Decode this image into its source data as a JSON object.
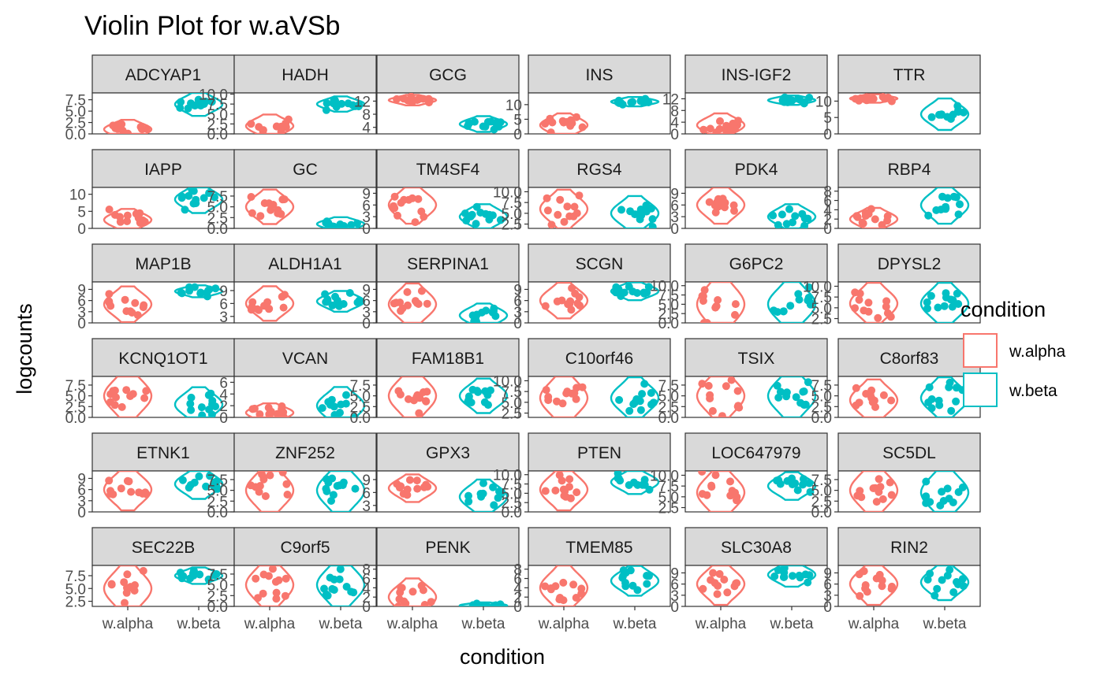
{
  "chart_data": {
    "type": "violin",
    "title": "Violin Plot for w.aVSb",
    "xlabel": "condition",
    "ylabel": "logcounts",
    "categories": [
      "w.alpha",
      "w.beta"
    ],
    "legend": {
      "title": "condition",
      "position": "right",
      "entries": [
        {
          "label": "w.alpha",
          "color": "#F8766D"
        },
        {
          "label": "w.beta",
          "color": "#00BFC4"
        }
      ]
    },
    "facets": [
      {
        "gene": "ADCYAP1",
        "yticks": [
          "0.0",
          "2.5",
          "5.0",
          "7.5"
        ],
        "ylim": [
          0,
          9
        ],
        "alpha": {
          "center": 1.0,
          "spread": 1.3
        },
        "beta": {
          "center": 6.5,
          "spread": 1.6
        }
      },
      {
        "gene": "HADH",
        "yticks": [
          "0.0",
          "2.5",
          "5.0",
          "7.5",
          "10.0"
        ],
        "ylim": [
          0,
          10.3
        ],
        "alpha": {
          "center": 2.0,
          "spread": 1.8
        },
        "beta": {
          "center": 7.5,
          "spread": 1.2
        }
      },
      {
        "gene": "GCG",
        "yticks": [
          "4",
          "8",
          "12"
        ],
        "ylim": [
          2,
          14.5
        ],
        "alpha": {
          "center": 12.3,
          "spread": 1.0
        },
        "beta": {
          "center": 5.0,
          "spread": 1.5
        }
      },
      {
        "gene": "INS",
        "yticks": [
          "0",
          "5",
          "10"
        ],
        "ylim": [
          0,
          14
        ],
        "alpha": {
          "center": 3.0,
          "spread": 2.5
        },
        "beta": {
          "center": 11.0,
          "spread": 1.0
        }
      },
      {
        "gene": "INS-IGF2",
        "yticks": [
          "0",
          "4",
          "8",
          "12"
        ],
        "ylim": [
          0,
          14
        ],
        "alpha": {
          "center": 3.0,
          "spread": 2.5
        },
        "beta": {
          "center": 11.5,
          "spread": 1.0
        }
      },
      {
        "gene": "TTR",
        "yticks": [
          "0",
          "5",
          "10"
        ],
        "ylim": [
          0,
          12.5
        ],
        "alpha": {
          "center": 10.8,
          "spread": 0.8
        },
        "beta": {
          "center": 6.0,
          "spread": 3.0
        }
      },
      {
        "gene": "IAPP",
        "yticks": [
          "0",
          "5",
          "10"
        ],
        "ylim": [
          0,
          12
        ],
        "alpha": {
          "center": 2.5,
          "spread": 2.0
        },
        "beta": {
          "center": 8.5,
          "spread": 2.5
        }
      },
      {
        "gene": "GC",
        "yticks": [
          "0.0",
          "2.5",
          "5.0",
          "7.5"
        ],
        "ylim": [
          0,
          9.5
        ],
        "alpha": {
          "center": 5.0,
          "spread": 2.5
        },
        "beta": {
          "center": 1.0,
          "spread": 1.0
        }
      },
      {
        "gene": "TM4SF4",
        "yticks": [
          "0",
          "3",
          "6",
          "9"
        ],
        "ylim": [
          0,
          10.5
        ],
        "alpha": {
          "center": 6.0,
          "spread": 3.0
        },
        "beta": {
          "center": 3.0,
          "spread": 2.0
        }
      },
      {
        "gene": "RGS4",
        "yticks": [
          "2.5",
          "5.0",
          "7.5",
          "10.0"
        ],
        "ylim": [
          1.5,
          11.0
        ],
        "alpha": {
          "center": 6.0,
          "spread": 2.8
        },
        "beta": {
          "center": 5.0,
          "spread": 2.5
        }
      },
      {
        "gene": "PDK4",
        "yticks": [
          "0",
          "3",
          "6",
          "9"
        ],
        "ylim": [
          0,
          10.5
        ],
        "alpha": {
          "center": 6.0,
          "spread": 3.0
        },
        "beta": {
          "center": 3.0,
          "spread": 2.0
        }
      },
      {
        "gene": "RBP4",
        "yticks": [
          "0",
          "2",
          "4",
          "6",
          "8"
        ],
        "ylim": [
          0,
          8.8
        ],
        "alpha": {
          "center": 2.0,
          "spread": 1.5
        },
        "beta": {
          "center": 5.0,
          "spread": 2.5
        }
      },
      {
        "gene": "MAP1B",
        "yticks": [
          "0",
          "3",
          "6",
          "9"
        ],
        "ylim": [
          0,
          11
        ],
        "alpha": {
          "center": 5.0,
          "spread": 3.0
        },
        "beta": {
          "center": 8.5,
          "spread": 1.0
        }
      },
      {
        "gene": "ALDH1A1",
        "yticks": [
          "3",
          "6",
          "9"
        ],
        "ylim": [
          1.5,
          11
        ],
        "alpha": {
          "center": 6.0,
          "spread": 2.5
        },
        "beta": {
          "center": 6.5,
          "spread": 1.5
        }
      },
      {
        "gene": "SERPINA1",
        "yticks": [
          "0",
          "3",
          "6",
          "9"
        ],
        "ylim": [
          0,
          11
        ],
        "alpha": {
          "center": 5.0,
          "spread": 3.5
        },
        "beta": {
          "center": 2.0,
          "spread": 2.0
        }
      },
      {
        "gene": "SCGN",
        "yticks": [
          "0",
          "3",
          "6",
          "9"
        ],
        "ylim": [
          0,
          11
        ],
        "alpha": {
          "center": 6.0,
          "spread": 3.0
        },
        "beta": {
          "center": 8.5,
          "spread": 1.5
        }
      },
      {
        "gene": "G6PC2",
        "yticks": [
          "0.0",
          "2.5",
          "5.0",
          "7.5",
          "10.0"
        ],
        "ylim": [
          0,
          11
        ],
        "alpha": {
          "center": 5.0,
          "spread": 4.5
        },
        "beta": {
          "center": 5.0,
          "spread": 4.0
        }
      },
      {
        "gene": "DPYSL2",
        "yticks": [
          "2.5",
          "5.0",
          "7.5",
          "10.0"
        ],
        "ylim": [
          1.5,
          11
        ],
        "alpha": {
          "center": 6.0,
          "spread": 3.0
        },
        "beta": {
          "center": 6.0,
          "spread": 3.0
        }
      },
      {
        "gene": "KCNQ1OT1",
        "yticks": [
          "0.0",
          "2.5",
          "5.0",
          "7.5"
        ],
        "ylim": [
          0,
          9.5
        ],
        "alpha": {
          "center": 5.0,
          "spread": 3.5
        },
        "beta": {
          "center": 3.0,
          "spread": 2.5
        }
      },
      {
        "gene": "VCAN",
        "yticks": [
          "0",
          "2",
          "4",
          "6"
        ],
        "ylim": [
          0,
          7
        ],
        "alpha": {
          "center": 0.8,
          "spread": 1.0
        },
        "beta": {
          "center": 2.0,
          "spread": 2.0
        }
      },
      {
        "gene": "FAM18B1",
        "yticks": [
          "0.0",
          "2.5",
          "5.0",
          "7.5"
        ],
        "ylim": [
          0,
          9.5
        ],
        "alpha": {
          "center": 5.0,
          "spread": 3.5
        },
        "beta": {
          "center": 5.0,
          "spread": 2.5
        }
      },
      {
        "gene": "C10orf46",
        "yticks": [
          "2.5",
          "5.0",
          "7.5",
          "10.0"
        ],
        "ylim": [
          1.5,
          11
        ],
        "alpha": {
          "center": 6.0,
          "spread": 3.5
        },
        "beta": {
          "center": 6.0,
          "spread": 3.0
        }
      },
      {
        "gene": "TSIX",
        "yticks": [
          "0.0",
          "2.5",
          "5.0",
          "7.5"
        ],
        "ylim": [
          0,
          9.5
        ],
        "alpha": {
          "center": 5.0,
          "spread": 3.5
        },
        "beta": {
          "center": 5.0,
          "spread": 3.5
        }
      },
      {
        "gene": "C8orf83",
        "yticks": [
          "0.0",
          "2.5",
          "5.0",
          "7.5"
        ],
        "ylim": [
          0,
          9.5
        ],
        "alpha": {
          "center": 4.0,
          "spread": 3.0
        },
        "beta": {
          "center": 4.5,
          "spread": 3.0
        }
      },
      {
        "gene": "ETNK1",
        "yticks": [
          "0",
          "3",
          "6",
          "9"
        ],
        "ylim": [
          0,
          11
        ],
        "alpha": {
          "center": 6.0,
          "spread": 3.5
        },
        "beta": {
          "center": 7.5,
          "spread": 2.5
        }
      },
      {
        "gene": "ZNF252",
        "yticks": [
          "0.0",
          "2.5",
          "5.0",
          "7.5"
        ],
        "ylim": [
          0,
          9.5
        ],
        "alpha": {
          "center": 5.0,
          "spread": 3.5
        },
        "beta": {
          "center": 5.0,
          "spread": 3.5
        }
      },
      {
        "gene": "GPX3",
        "yticks": [
          "3",
          "6",
          "9"
        ],
        "ylim": [
          1.5,
          11
        ],
        "alpha": {
          "center": 7.0,
          "spread": 2.0
        },
        "beta": {
          "center": 5.0,
          "spread": 2.5
        }
      },
      {
        "gene": "PTEN",
        "yticks": [
          "0.0",
          "2.5",
          "5.0",
          "7.5",
          "10.0"
        ],
        "ylim": [
          0,
          11
        ],
        "alpha": {
          "center": 6.0,
          "spread": 3.5
        },
        "beta": {
          "center": 8.0,
          "spread": 2.0
        }
      },
      {
        "gene": "LOC647979",
        "yticks": [
          "2.5",
          "5.0",
          "7.5",
          "10.0"
        ],
        "ylim": [
          1.5,
          11
        ],
        "alpha": {
          "center": 6.0,
          "spread": 3.5
        },
        "beta": {
          "center": 7.5,
          "spread": 2.0
        }
      },
      {
        "gene": "SC5DL",
        "yticks": [
          "0.0",
          "2.5",
          "5.0",
          "7.5"
        ],
        "ylim": [
          0,
          9.5
        ],
        "alpha": {
          "center": 5.0,
          "spread": 3.5
        },
        "beta": {
          "center": 4.5,
          "spread": 3.5
        }
      },
      {
        "gene": "SEC22B",
        "yticks": [
          "2.5",
          "5.0",
          "7.5"
        ],
        "ylim": [
          1.5,
          9.5
        ],
        "alpha": {
          "center": 5.0,
          "spread": 3.0
        },
        "beta": {
          "center": 7.5,
          "spread": 1.0
        }
      },
      {
        "gene": "C9orf5",
        "yticks": [
          "0.0",
          "2.5",
          "5.0",
          "7.5"
        ],
        "ylim": [
          0,
          9.5
        ],
        "alpha": {
          "center": 5.0,
          "spread": 3.5
        },
        "beta": {
          "center": 5.0,
          "spread": 3.5
        }
      },
      {
        "gene": "PENK",
        "yticks": [
          "0",
          "2",
          "4",
          "6",
          "8"
        ],
        "ylim": [
          0,
          8.8
        ],
        "alpha": {
          "center": 2.0,
          "spread": 2.5
        },
        "beta": {
          "center": 0.2,
          "spread": 0.4
        }
      },
      {
        "gene": "TMEM85",
        "yticks": [
          "0",
          "2",
          "4",
          "6",
          "8"
        ],
        "ylim": [
          0,
          8.8
        ],
        "alpha": {
          "center": 4.0,
          "spread": 3.0
        },
        "beta": {
          "center": 5.5,
          "spread": 2.0
        }
      },
      {
        "gene": "SLC30A8",
        "yticks": [
          "0",
          "3",
          "6",
          "9"
        ],
        "ylim": [
          0,
          11
        ],
        "alpha": {
          "center": 6.0,
          "spread": 3.5
        },
        "beta": {
          "center": 8.5,
          "spread": 2.0
        }
      },
      {
        "gene": "RIN2",
        "yticks": [
          "0",
          "3",
          "6",
          "9"
        ],
        "ylim": [
          0,
          11
        ],
        "alpha": {
          "center": 6.0,
          "spread": 3.5
        },
        "beta": {
          "center": 6.5,
          "spread": 3.0
        }
      }
    ]
  }
}
